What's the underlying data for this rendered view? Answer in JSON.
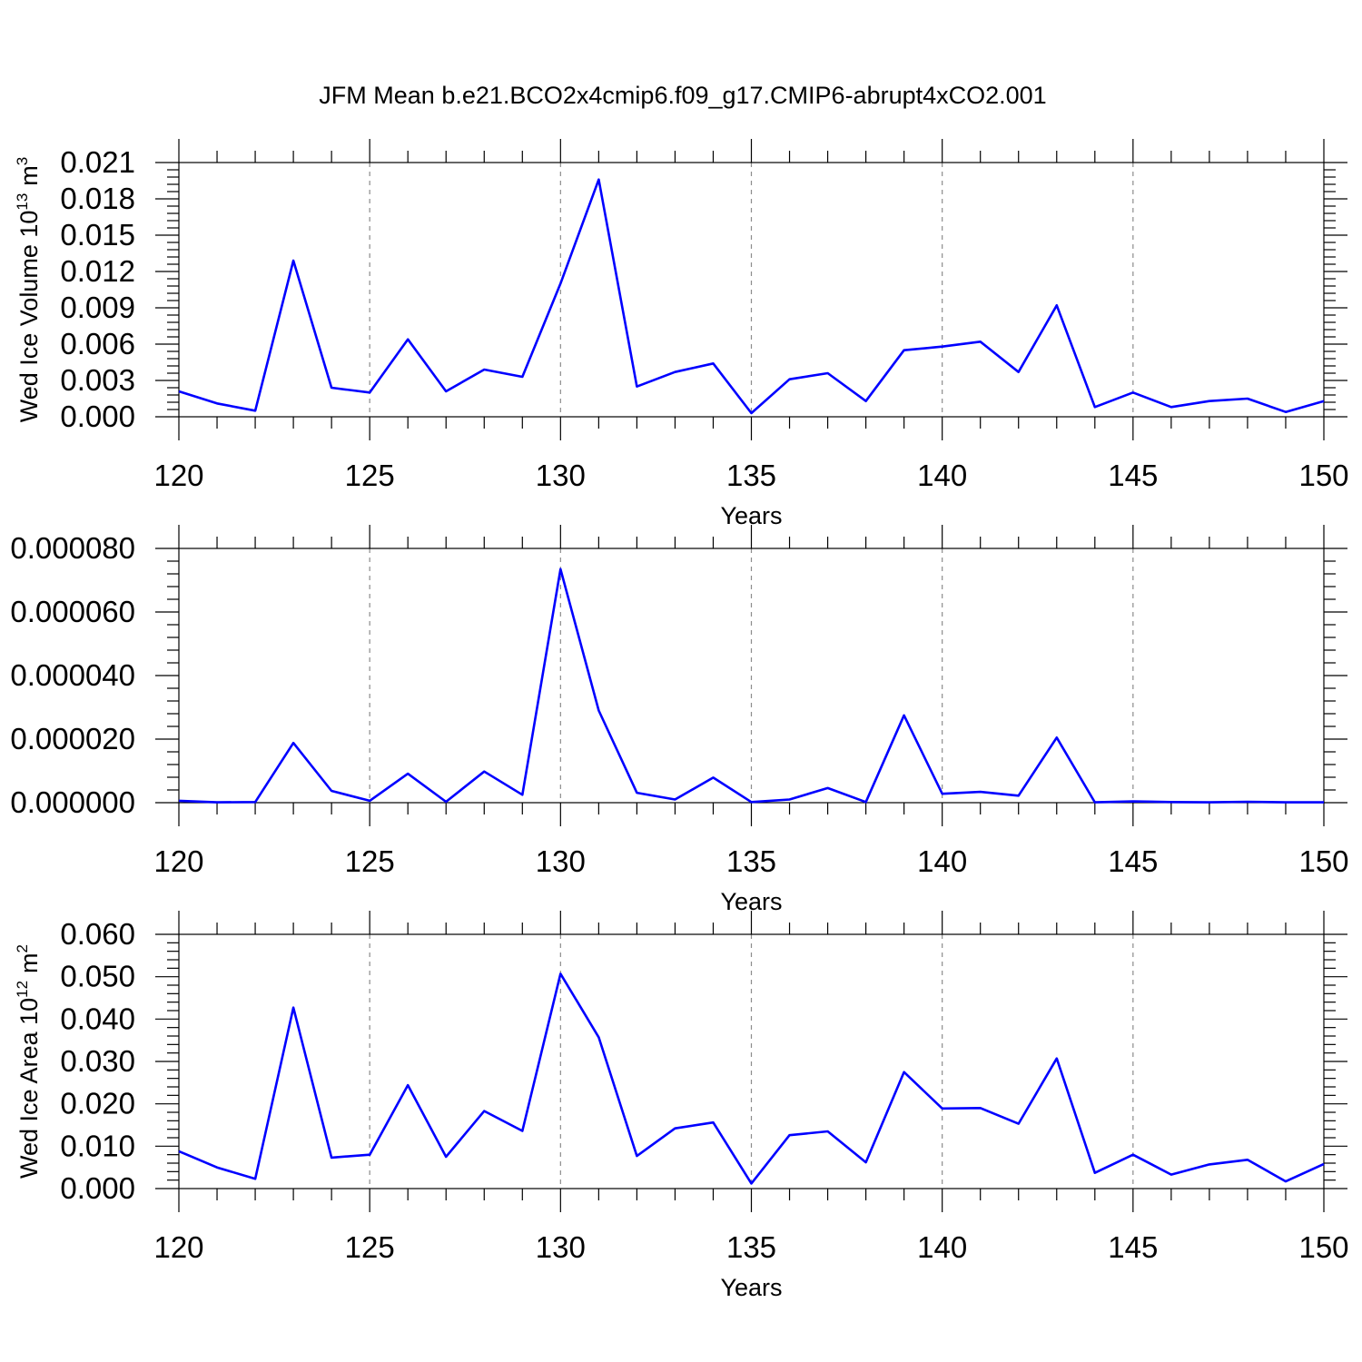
{
  "title": "JFM Mean b.e21.BCO2x4cmip6.f09_g17.CMIP6-abrupt4xCO2.001",
  "colors": {
    "line": "#0000ff",
    "grid": "#8c8c8c",
    "frame": "#000000"
  },
  "chart_data": [
    {
      "type": "line",
      "xlabel": "Years",
      "ylabel": "Wed Ice Volume 10",
      "ylabel_sup": "13",
      "ylabel_unit": "m",
      "ylabel_unit_sup": "3",
      "xlim": [
        120,
        150
      ],
      "ylim": [
        0,
        0.021
      ],
      "xticks": [
        120,
        125,
        130,
        135,
        140,
        145,
        150
      ],
      "xtick_labels": [
        "120",
        "125",
        "130",
        "135",
        "140",
        "145",
        "150"
      ],
      "yticks": [
        0,
        0.003,
        0.006,
        0.009,
        0.012,
        0.015,
        0.018,
        0.021
      ],
      "ytick_labels": [
        "0.000",
        "0.003",
        "0.006",
        "0.009",
        "0.012",
        "0.015",
        "0.018",
        "0.021"
      ],
      "grid": "vertical-dashed",
      "x": [
        120,
        121,
        122,
        123,
        124,
        125,
        126,
        127,
        128,
        129,
        130,
        131,
        132,
        133,
        134,
        135,
        136,
        137,
        138,
        139,
        140,
        141,
        142,
        143,
        144,
        145,
        146,
        147,
        148,
        149,
        150
      ],
      "y": [
        0.0021,
        0.0011,
        0.0005,
        0.0129,
        0.0024,
        0.002,
        0.0064,
        0.0021,
        0.0039,
        0.0033,
        0.011,
        0.0196,
        0.0025,
        0.0037,
        0.0044,
        0.0003,
        0.0031,
        0.0036,
        0.0013,
        0.0055,
        0.0058,
        0.0062,
        0.0037,
        0.0092,
        0.0008,
        0.002,
        0.0008,
        0.0013,
        0.0015,
        0.0004,
        0.0013
      ]
    },
    {
      "type": "line",
      "xlabel": "Years",
      "ylabel": "",
      "xlim": [
        120,
        150
      ],
      "ylim": [
        0,
        8e-05
      ],
      "xticks": [
        120,
        125,
        130,
        135,
        140,
        145,
        150
      ],
      "xtick_labels": [
        "120",
        "125",
        "130",
        "135",
        "140",
        "145",
        "150"
      ],
      "yticks": [
        0,
        2e-05,
        4e-05,
        6e-05,
        8e-05
      ],
      "ytick_labels": [
        "0.000000",
        "0.000020",
        "0.000040",
        "0.000060",
        "0.000080"
      ],
      "grid": "vertical-dashed",
      "x": [
        120,
        121,
        122,
        123,
        124,
        125,
        126,
        127,
        128,
        129,
        130,
        131,
        132,
        133,
        134,
        135,
        136,
        137,
        138,
        139,
        140,
        141,
        142,
        143,
        144,
        145,
        146,
        147,
        148,
        149,
        150
      ],
      "y": [
        6e-07,
        1e-07,
        2e-07,
        1.88e-05,
        3.7e-06,
        6e-07,
        9.1e-06,
        3e-07,
        9.8e-06,
        2.5e-06,
        7.35e-05,
        2.9e-05,
        3.1e-06,
        1e-06,
        7.9e-06,
        2e-07,
        1e-06,
        4.6e-06,
        2e-07,
        2.75e-05,
        2.8e-06,
        3.4e-06,
        2.2e-06,
        2.05e-05,
        1e-07,
        4e-07,
        2e-07,
        1e-07,
        3e-07,
        1e-07,
        1e-07
      ]
    },
    {
      "type": "line",
      "xlabel": "Years",
      "ylabel": "Wed Ice Area 10",
      "ylabel_sup": "12",
      "ylabel_unit": "m",
      "ylabel_unit_sup": "2",
      "xlim": [
        120,
        150
      ],
      "ylim": [
        0,
        0.06
      ],
      "xticks": [
        120,
        125,
        130,
        135,
        140,
        145,
        150
      ],
      "xtick_labels": [
        "120",
        "125",
        "130",
        "135",
        "140",
        "145",
        "150"
      ],
      "yticks": [
        0,
        0.01,
        0.02,
        0.03,
        0.04,
        0.05,
        0.06
      ],
      "ytick_labels": [
        "0.000",
        "0.010",
        "0.020",
        "0.030",
        "0.040",
        "0.050",
        "0.060"
      ],
      "grid": "vertical-dashed",
      "x": [
        120,
        121,
        122,
        123,
        124,
        125,
        126,
        127,
        128,
        129,
        130,
        131,
        132,
        133,
        134,
        135,
        136,
        137,
        138,
        139,
        140,
        141,
        142,
        143,
        144,
        145,
        146,
        147,
        148,
        149,
        150
      ],
      "y": [
        0.0088,
        0.005,
        0.0023,
        0.0427,
        0.0073,
        0.008,
        0.0244,
        0.0075,
        0.0183,
        0.0136,
        0.0507,
        0.0357,
        0.0077,
        0.0142,
        0.0156,
        0.0012,
        0.0126,
        0.0135,
        0.0062,
        0.0275,
        0.0189,
        0.019,
        0.0153,
        0.0307,
        0.0037,
        0.008,
        0.0033,
        0.0057,
        0.0068,
        0.0017,
        0.0058
      ]
    }
  ]
}
